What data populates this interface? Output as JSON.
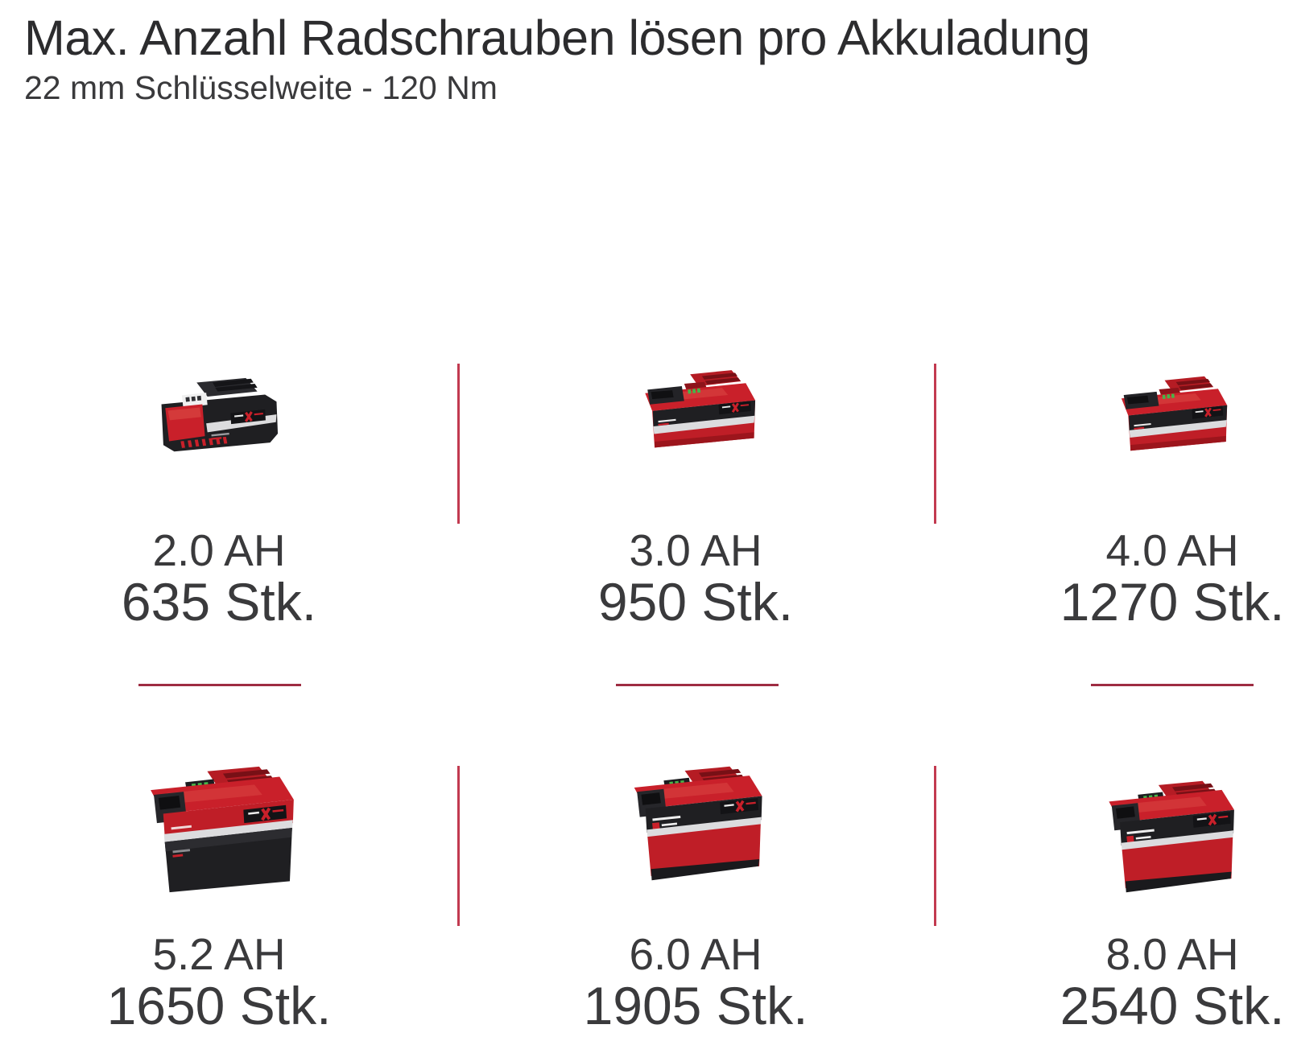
{
  "header": {
    "title": "Max. Anzahl Radschrauben lösen pro Akkuladung",
    "subtitle": "22 mm Schlüsselweite - 120 Nm"
  },
  "colors": {
    "background": "#ffffff",
    "text_title": "#2c2c2e",
    "text_labels": "#3a3a3c",
    "divider_vertical": "#c23a50",
    "divider_horizontal": "#9e2c42",
    "brand_red": "#c9202a",
    "brand_red_dark": "#9c151c",
    "battery_black": "#1f1f22",
    "label_silver": "#dcdcde",
    "led_green": "#44b649"
  },
  "batteries": [
    {
      "capacity": "2.0 AH",
      "count": "635 Stk.",
      "variant": "flat-black"
    },
    {
      "capacity": "3.0 AH",
      "count": "950 Stk.",
      "variant": "flat-red"
    },
    {
      "capacity": "4.0 AH",
      "count": "1270 Stk.",
      "variant": "flat-red"
    },
    {
      "capacity": "5.2 AH",
      "count": "1650 Stk.",
      "variant": "tall-dark"
    },
    {
      "capacity": "6.0 AH",
      "count": "1905 Stk.",
      "variant": "tall-red"
    },
    {
      "capacity": "8.0 AH",
      "count": "2540 Stk.",
      "variant": "tall-red"
    }
  ]
}
